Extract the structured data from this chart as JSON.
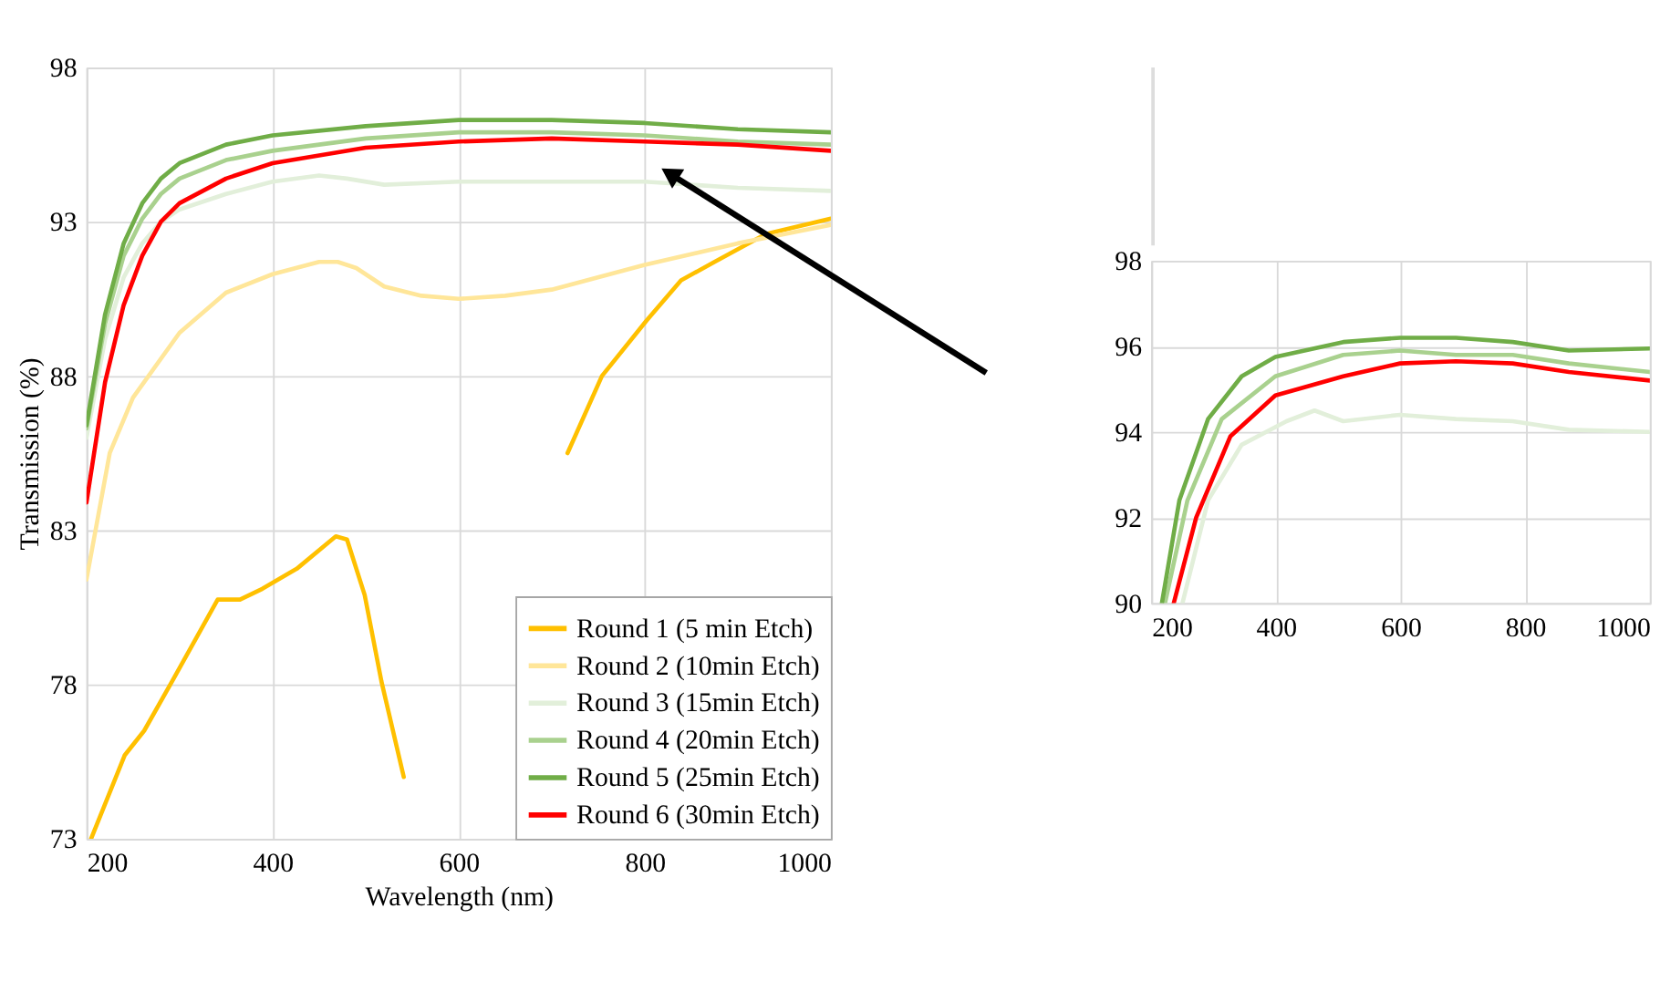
{
  "chart_data": [
    {
      "type": "line",
      "xlabel": "Wavelength (nm)",
      "ylabel": "Transmission (%)",
      "xlim": [
        200,
        1000
      ],
      "xticks": [
        200,
        400,
        600,
        800,
        1000
      ],
      "ylim": [
        73,
        98
      ],
      "yticks": [
        73,
        78,
        83,
        88,
        93,
        98
      ],
      "grid": true,
      "legend": "bottom right",
      "line_style": "solid",
      "marker": "none",
      "series": [
        {
          "name": "Round 1 (5 min Etch)",
          "color": "#ffc000",
          "x": [
            205,
            241,
            262,
            292,
            341,
            365,
            389,
            426,
            468,
            480,
            499,
            517,
            541,
            672,
            717,
            754,
            802,
            839,
            875,
            930,
            1000
          ],
          "values": [
            73.0,
            75.7,
            76.5,
            78.1,
            80.75,
            80.75,
            81.1,
            81.75,
            82.8,
            82.7,
            80.9,
            78.1,
            75.0,
            null,
            85.5,
            88.0,
            89.8,
            91.1,
            91.7,
            92.6,
            93.1
          ]
        },
        {
          "name": "Round 2 (10min Etch)",
          "color": "#ffe699",
          "x": [
            200,
            225,
            250,
            300,
            350,
            400,
            450,
            470,
            490,
            520,
            560,
            600,
            650,
            700,
            800,
            900,
            1000
          ],
          "values": [
            81.4,
            85.5,
            87.3,
            89.4,
            90.7,
            91.3,
            91.7,
            91.7,
            91.5,
            90.9,
            90.6,
            90.5,
            90.6,
            90.8,
            91.6,
            92.3,
            92.9
          ]
        },
        {
          "name": "Round 3 (15min Etch)",
          "color": "#e2efda",
          "x": [
            200,
            220,
            240,
            260,
            280,
            300,
            350,
            400,
            450,
            480,
            520,
            600,
            700,
            800,
            900,
            1000
          ],
          "values": [
            86.0,
            89.2,
            91.2,
            92.3,
            93.0,
            93.4,
            93.9,
            94.3,
            94.5,
            94.4,
            94.2,
            94.3,
            94.3,
            94.3,
            94.1,
            94.0
          ]
        },
        {
          "name": "Round 4 (20min Etch)",
          "color": "#a9d18e",
          "x": [
            200,
            220,
            240,
            260,
            280,
            300,
            350,
            400,
            500,
            600,
            700,
            800,
            900,
            1000
          ],
          "values": [
            86.3,
            89.7,
            91.9,
            93.1,
            93.9,
            94.4,
            95.0,
            95.3,
            95.7,
            95.9,
            95.9,
            95.8,
            95.6,
            95.5
          ]
        },
        {
          "name": "Round 5 (25min Etch)",
          "color": "#70ad47",
          "x": [
            200,
            220,
            240,
            260,
            280,
            300,
            350,
            400,
            500,
            600,
            700,
            800,
            900,
            1000
          ],
          "values": [
            86.4,
            90.0,
            92.3,
            93.6,
            94.4,
            94.9,
            95.5,
            95.8,
            96.1,
            96.3,
            96.3,
            96.2,
            96.0,
            95.9
          ]
        },
        {
          "name": "Round 6 (30min Etch)",
          "color": "#ff0000",
          "x": [
            200,
            220,
            240,
            260,
            280,
            300,
            350,
            400,
            500,
            600,
            700,
            800,
            900,
            1000
          ],
          "values": [
            83.9,
            87.8,
            90.3,
            91.9,
            93.0,
            93.6,
            94.4,
            94.9,
            95.4,
            95.6,
            95.7,
            95.6,
            95.5,
            95.3
          ]
        }
      ]
    },
    {
      "type": "line",
      "xlim": [
        200,
        1000
      ],
      "xticks": [
        200,
        400,
        600,
        800,
        1000
      ],
      "ylim": [
        90,
        98
      ],
      "yticks": [
        90,
        92,
        94,
        96,
        98
      ],
      "grid": true,
      "line_style": "solid",
      "marker": "none",
      "series": [
        {
          "color": "#e2efda",
          "x": [
            250,
            291,
            345,
            417,
            462,
            508,
            599,
            689,
            780,
            870,
            1000
          ],
          "values": [
            90.0,
            92.4,
            93.7,
            94.25,
            94.5,
            94.25,
            94.4,
            94.3,
            94.25,
            94.05,
            94.0
          ]
        },
        {
          "color": "#a9d18e",
          "x": [
            222,
            258,
            313,
            399,
            508,
            599,
            689,
            780,
            870,
            1000
          ],
          "values": [
            90.0,
            92.4,
            94.3,
            95.3,
            95.8,
            95.9,
            95.8,
            95.8,
            95.6,
            95.4
          ]
        },
        {
          "color": "#70ad47",
          "x": [
            217,
            245,
            291,
            345,
            399,
            508,
            599,
            689,
            780,
            870,
            1000
          ],
          "values": [
            90.0,
            92.4,
            94.3,
            95.3,
            95.75,
            96.1,
            96.2,
            96.2,
            96.1,
            95.9,
            95.95
          ]
        },
        {
          "color": "#ff0000",
          "x": [
            236,
            272,
            327,
            399,
            508,
            599,
            689,
            780,
            870,
            1000
          ],
          "values": [
            90.0,
            92.0,
            93.9,
            94.85,
            95.3,
            95.6,
            95.65,
            95.6,
            95.4,
            95.2
          ]
        }
      ]
    }
  ]
}
